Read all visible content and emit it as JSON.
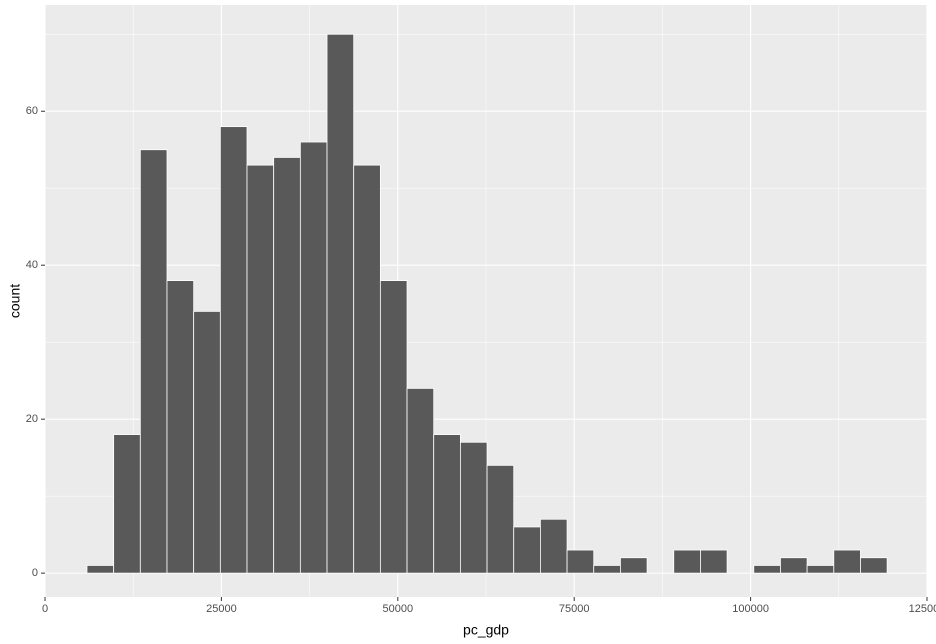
{
  "chart_data": {
    "type": "histogram",
    "x_label": "pc_gdp",
    "y_label": "count",
    "bins": [
      5950,
      9730,
      13510,
      17290,
      21070,
      24850,
      28630,
      32410,
      36190,
      39970,
      43750,
      47530,
      51310,
      55090,
      58870,
      62650,
      66430,
      70210,
      73990,
      77770,
      81550,
      85330,
      89110,
      92890,
      96670,
      100450,
      104230,
      108010,
      111790,
      115570,
      119350
    ],
    "values": [
      1,
      18,
      55,
      38,
      34,
      58,
      53,
      54,
      56,
      70,
      53,
      38,
      24,
      18,
      17,
      14,
      6,
      7,
      3,
      1,
      2,
      0,
      3,
      3,
      0,
      1,
      2,
      1,
      3,
      2
    ],
    "color": "#595959",
    "edge_color": "#ffffff",
    "panel_color": "#ebebeb",
    "grid": true,
    "xlim": [
      0,
      125000
    ],
    "xticks": [
      0,
      25000,
      50000,
      75000,
      100000,
      125000
    ],
    "ylim": [
      -3.1,
      73.8
    ],
    "yticks": [
      0,
      20,
      40,
      60
    ]
  }
}
